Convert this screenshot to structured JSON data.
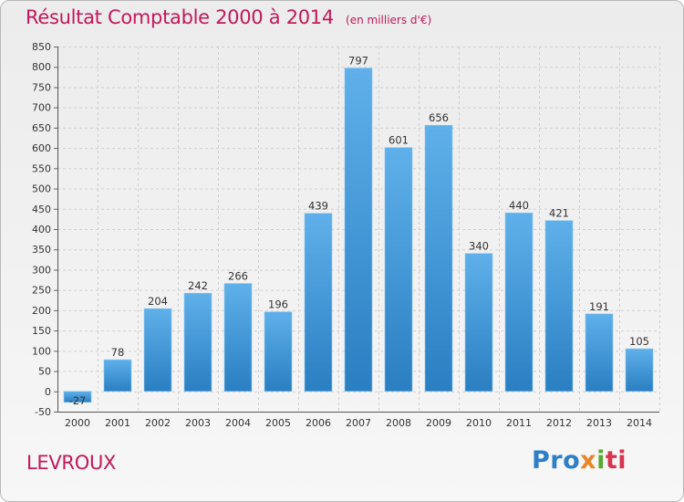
{
  "header": {
    "title": "Résultat Comptable 2000 à 2014",
    "subtitle": "(en milliers d'€)"
  },
  "footer": {
    "place": "LEVROUX",
    "logo": [
      "Pro",
      "x",
      "i",
      "ti"
    ]
  },
  "colors": {
    "bar_top": "#5fb0ea",
    "bar_bottom": "#2a7fc2",
    "title": "#c2185b"
  },
  "chart_data": {
    "type": "bar",
    "title": "Résultat Comptable 2000 à 2014",
    "subtitle": "(en milliers d'€)",
    "categories": [
      "2000",
      "2001",
      "2002",
      "2003",
      "2004",
      "2005",
      "2006",
      "2007",
      "2008",
      "2009",
      "2010",
      "2011",
      "2012",
      "2013",
      "2014"
    ],
    "values": [
      -27,
      78,
      204,
      242,
      266,
      196,
      439,
      797,
      601,
      656,
      340,
      440,
      421,
      191,
      105
    ],
    "ylim": [
      -50,
      850
    ],
    "yticks": [
      -50,
      0,
      50,
      100,
      150,
      200,
      250,
      300,
      350,
      400,
      450,
      500,
      550,
      600,
      650,
      700,
      750,
      800,
      850
    ],
    "grid": true,
    "legend": "none"
  }
}
